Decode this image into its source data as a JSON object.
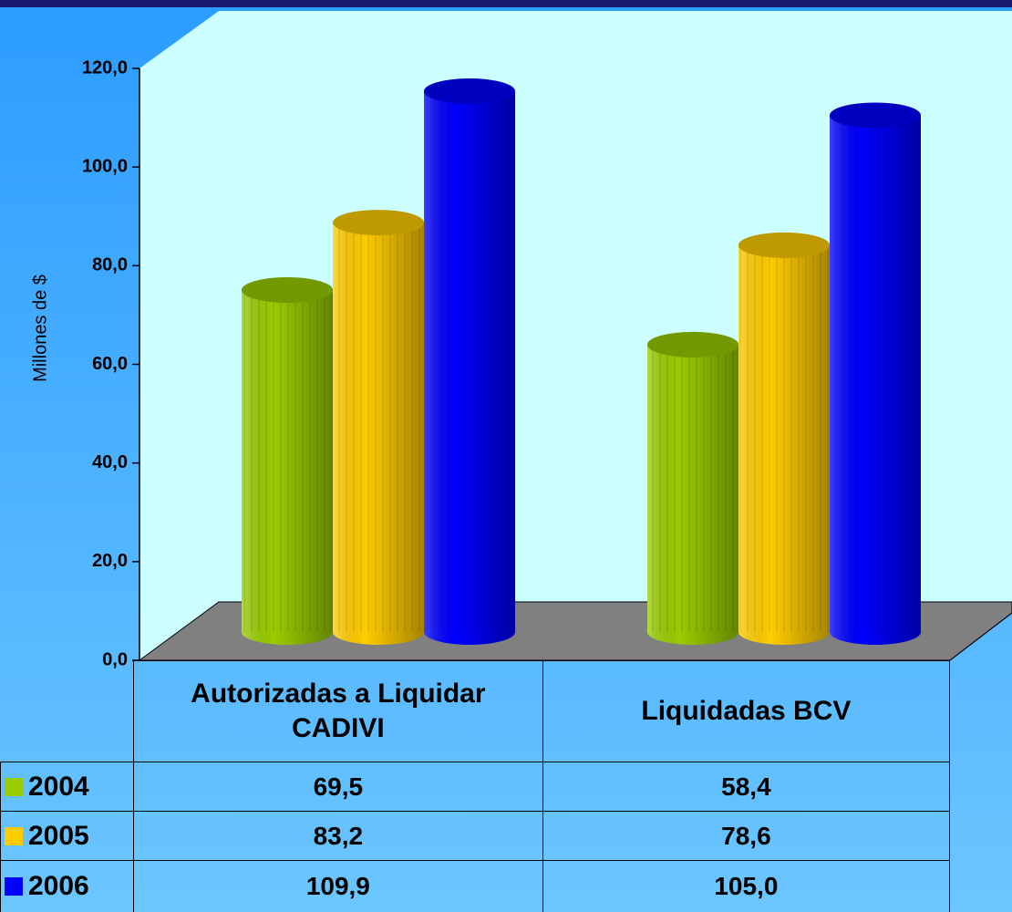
{
  "chart_data": {
    "type": "bar3d",
    "ylabel": "Millones de $",
    "categories": [
      "Autorizadas a Liquidar CADIVI",
      "Liquidadas BCV"
    ],
    "series": [
      {
        "name": "2004",
        "color": "#99cc00",
        "values": [
          69.5,
          58.4
        ],
        "value_labels": [
          "69,5",
          "58,4"
        ]
      },
      {
        "name": "2005",
        "color": "#ffcc00",
        "values": [
          83.2,
          78.6
        ],
        "value_labels": [
          "83,2",
          "78,6"
        ]
      },
      {
        "name": "2006",
        "color": "#0000ff",
        "values": [
          109.9,
          105.0
        ],
        "value_labels": [
          "109,9",
          "105,0"
        ]
      }
    ],
    "ylim": [
      0,
      120
    ],
    "yticks": [
      {
        "value": 0,
        "label": "0,0"
      },
      {
        "value": 20,
        "label": "20,0"
      },
      {
        "value": 40,
        "label": "40,0"
      },
      {
        "value": 60,
        "label": "60,0"
      },
      {
        "value": 80,
        "label": "80,0"
      },
      {
        "value": 100,
        "label": "100,0"
      },
      {
        "value": 120,
        "label": "120,0"
      }
    ]
  }
}
